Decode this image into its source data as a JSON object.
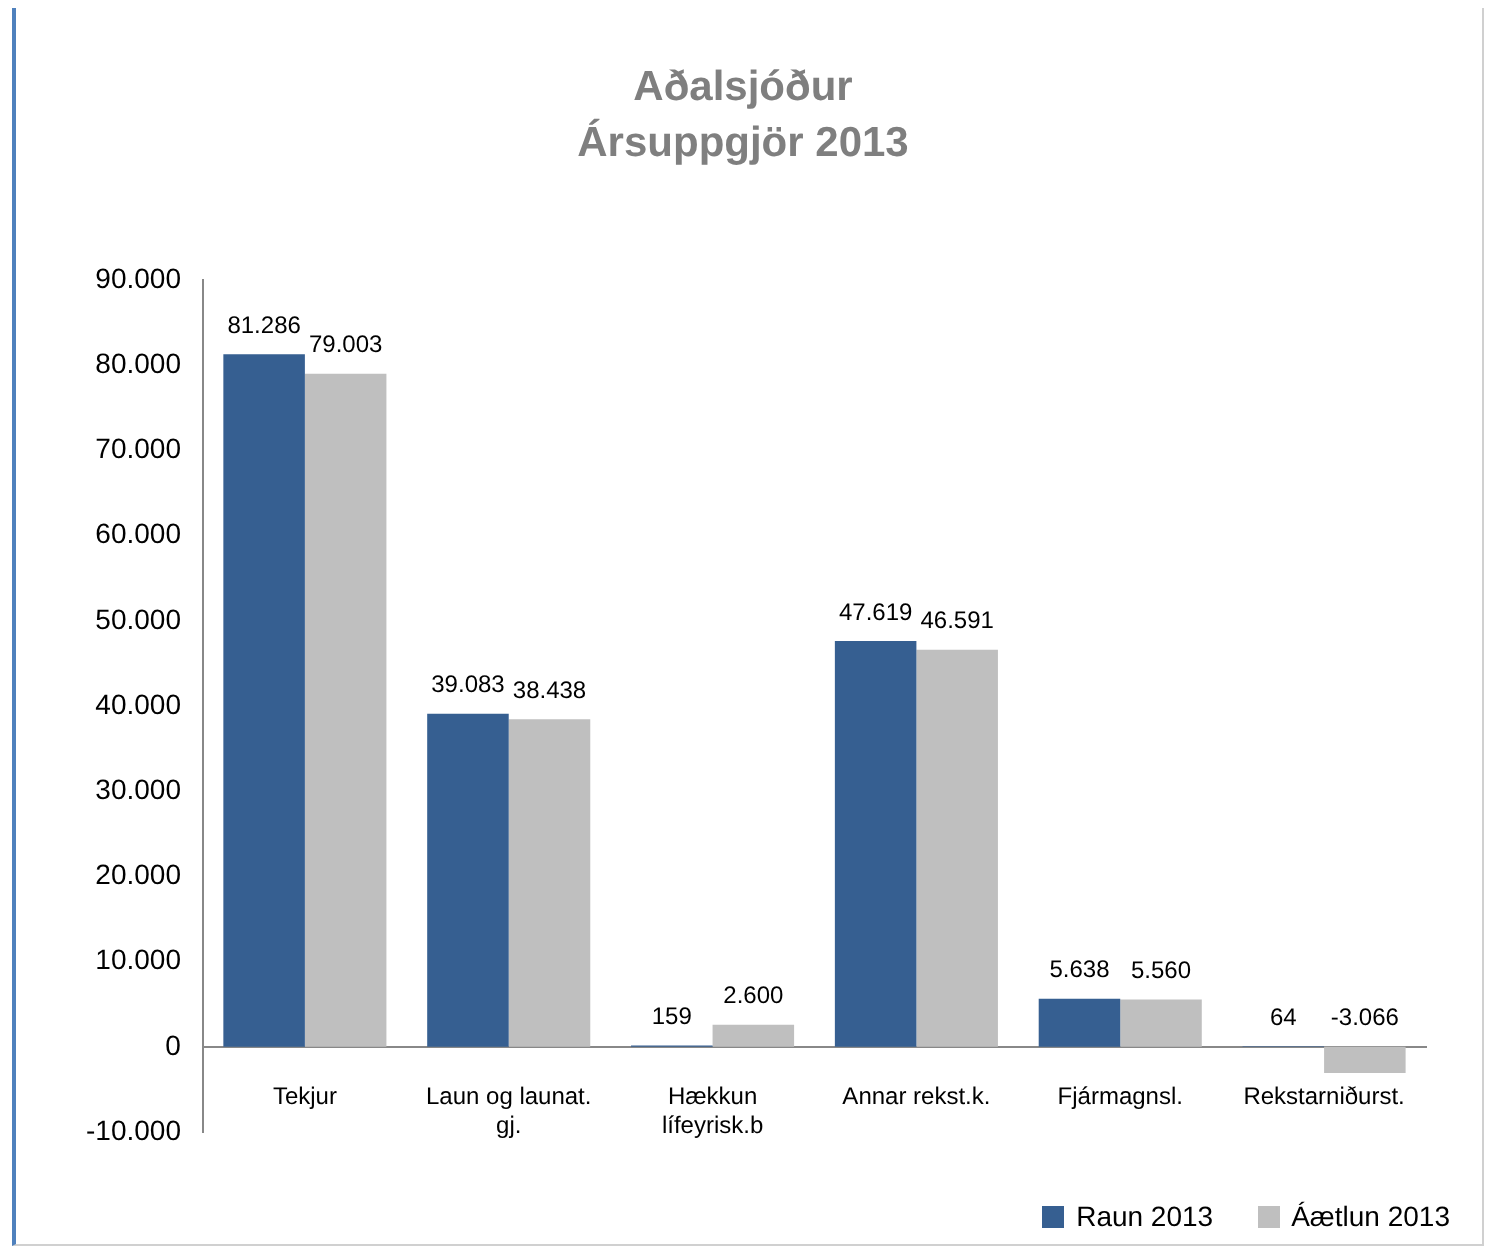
{
  "chart_data": {
    "type": "bar",
    "title": "Aðalsjóður",
    "subtitle": "Ársuppgjör 2013",
    "categories": [
      "Tekjur",
      "Laun og launat. gj.",
      "Hækkun lífeyrisk.b",
      "Annar rekst.k.",
      "Fjármagnsl.",
      "Rekstarniðurst."
    ],
    "series": [
      {
        "name": "Raun 2013",
        "color": "#365f91",
        "values": [
          81286,
          39083,
          159,
          47619,
          5638,
          64
        ],
        "value_labels": [
          "81.286",
          "39.083",
          "159",
          "47.619",
          "5.638",
          "64"
        ]
      },
      {
        "name": "Áætlun 2013",
        "color": "#bfbfbf",
        "values": [
          79003,
          38438,
          2600,
          46591,
          5560,
          -3066
        ],
        "value_labels": [
          "79.003",
          "38.438",
          "2.600",
          "46.591",
          "5.560",
          "-3.066"
        ]
      }
    ],
    "ylim": [
      -10000,
      90000
    ],
    "yticks": [
      {
        "value": -10000,
        "label": "-10.000"
      },
      {
        "value": 0,
        "label": "0"
      },
      {
        "value": 10000,
        "label": "10.000"
      },
      {
        "value": 20000,
        "label": "20.000"
      },
      {
        "value": 30000,
        "label": "30.000"
      },
      {
        "value": 40000,
        "label": "40.000"
      },
      {
        "value": 50000,
        "label": "50.000"
      },
      {
        "value": 60000,
        "label": "60.000"
      },
      {
        "value": 70000,
        "label": "70.000"
      },
      {
        "value": 80000,
        "label": "80.000"
      },
      {
        "value": 90000,
        "label": "90.000"
      }
    ],
    "grid": false,
    "legend": "bottom right"
  }
}
